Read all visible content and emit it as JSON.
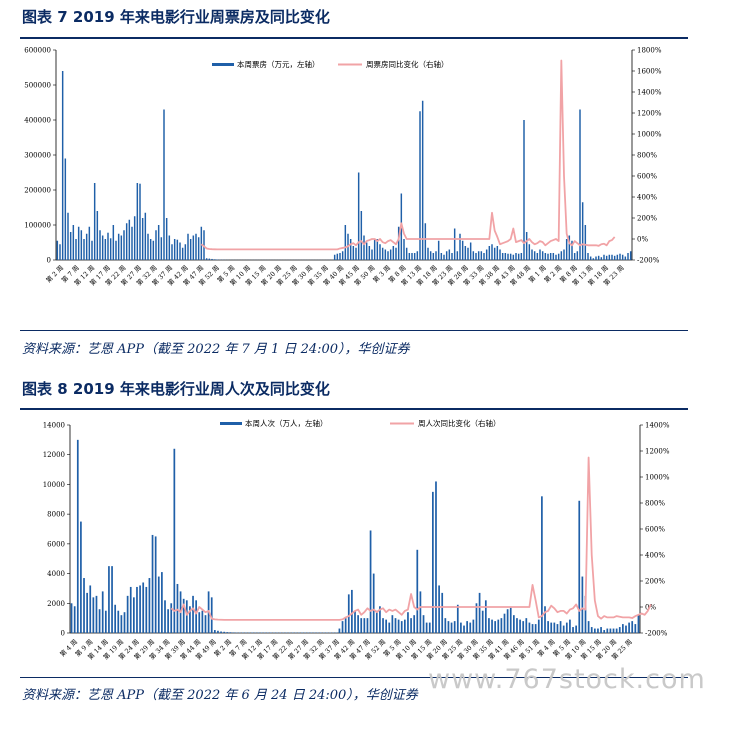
{
  "figures": [
    {
      "title": "图表 7 2019 年来电影行业周票房及同比变化",
      "source": "资料来源：艺恩 APP（截至 2022 年 7 月 1 日 24:00），华创证券"
    },
    {
      "title": "图表 8 2019 年来电影行业周人次及同比变化",
      "source": "资料来源：艺恩 APP（截至 2022 年 6 月 24 日 24:00），华创证券"
    }
  ],
  "watermark": "www.767stock.com",
  "chart_data": [
    {
      "type": "bar",
      "combo": "bar+line",
      "legend_position": "top",
      "series": [
        {
          "name": "本周票房（万元，左轴）",
          "type": "bar",
          "axis": "left",
          "color": "#1f5fa8",
          "values": [
            55000,
            45000,
            540000,
            290000,
            135000,
            80000,
            100000,
            60000,
            95000,
            85000,
            60000,
            75000,
            95000,
            55000,
            220000,
            140000,
            85000,
            70000,
            60000,
            78000,
            62000,
            100000,
            55000,
            75000,
            70000,
            85000,
            105000,
            115000,
            95000,
            125000,
            220000,
            218000,
            120000,
            135000,
            75000,
            60000,
            55000,
            85000,
            100000,
            65000,
            430000,
            120000,
            70000,
            45000,
            60000,
            58000,
            50000,
            35000,
            45000,
            75000,
            60000,
            70000,
            75000,
            65000,
            95000,
            85000,
            5000,
            4000,
            3000,
            2000,
            1500,
            1000,
            800,
            600,
            500,
            400,
            400,
            400,
            300,
            300,
            300,
            300,
            300,
            300,
            300,
            300,
            300,
            300,
            300,
            300,
            300,
            300,
            300,
            300,
            300,
            300,
            300,
            300,
            300,
            300,
            300,
            300,
            300,
            300,
            300,
            300,
            300,
            300,
            300,
            300,
            300,
            300,
            300,
            300,
            15000,
            18000,
            20000,
            25000,
            100000,
            75000,
            60000,
            40000,
            35000,
            250000,
            140000,
            70000,
            50000,
            40000,
            30000,
            60000,
            60000,
            45000,
            35000,
            30000,
            25000,
            30000,
            40000,
            35000,
            95000,
            190000,
            60000,
            35000,
            20000,
            20000,
            20000,
            25000,
            425000,
            455000,
            105000,
            35000,
            25000,
            20000,
            25000,
            55000,
            20000,
            15000,
            25000,
            30000,
            20000,
            90000,
            25000,
            75000,
            55000,
            40000,
            35000,
            50000,
            25000,
            20000,
            25000,
            25000,
            20000,
            30000,
            40000,
            45000,
            35000,
            40000,
            30000,
            20000,
            20000,
            18000,
            18000,
            15000,
            20000,
            18000,
            20000,
            400000,
            80000,
            45000,
            30000,
            25000,
            20000,
            30000,
            25000,
            20000,
            18000,
            20000,
            20000,
            15000,
            18000,
            25000,
            30000,
            60000,
            70000,
            55000,
            20000,
            25000,
            430000,
            165000,
            100000,
            20000,
            10000,
            5000,
            10000,
            12000,
            8000,
            15000,
            12000,
            15000,
            15000,
            12000,
            15000,
            18000,
            15000,
            10000,
            20000,
            25000
          ]
        },
        {
          "name": "周票房同比变化（右轴）",
          "type": "line",
          "axis": "right",
          "color": "#f1a3a6",
          "values": [
            null,
            null,
            null,
            null,
            null,
            null,
            null,
            null,
            null,
            null,
            null,
            null,
            null,
            null,
            null,
            null,
            null,
            null,
            null,
            null,
            null,
            null,
            null,
            null,
            null,
            null,
            null,
            null,
            null,
            null,
            null,
            null,
            null,
            null,
            null,
            null,
            null,
            null,
            null,
            null,
            null,
            null,
            null,
            null,
            null,
            null,
            null,
            null,
            null,
            null,
            null,
            null,
            null,
            null,
            -50,
            -70,
            -90,
            -95,
            -97,
            -98,
            -99,
            -99,
            -99,
            -99,
            -99,
            -99,
            -99,
            -99,
            -99,
            -99,
            -99,
            -99,
            -99,
            -99,
            -99,
            -99,
            -99,
            -99,
            -99,
            -99,
            -99,
            -99,
            -99,
            -99,
            -99,
            -99,
            -99,
            -99,
            -99,
            -99,
            -99,
            -99,
            -99,
            -99,
            -99,
            -99,
            -99,
            -99,
            -99,
            -99,
            -99,
            -99,
            -99,
            -99,
            -99,
            -99,
            -90,
            -85,
            -80,
            -70,
            -50,
            -40,
            -60,
            -30,
            -20,
            -50,
            -20,
            -10,
            0,
            0,
            -20,
            0,
            -30,
            -40,
            -20,
            -10,
            -30,
            -50,
            0,
            150,
            50,
            0,
            0,
            0,
            0,
            0,
            0,
            0,
            0,
            0,
            0,
            0,
            0,
            0,
            0,
            0,
            0,
            0,
            0,
            0,
            0,
            0,
            0,
            0,
            0,
            0,
            0,
            0,
            0,
            0,
            0,
            0,
            0,
            250,
            80,
            20,
            -50,
            -40,
            -30,
            -20,
            0,
            100,
            -30,
            -20,
            -10,
            -40,
            -20,
            0,
            -30,
            -50,
            -40,
            -20,
            -30,
            -60,
            -40,
            -20,
            -10,
            0,
            -20,
            1700,
            600,
            50,
            -40,
            -60,
            -20,
            -40,
            -60,
            -50,
            -55,
            -60,
            -60,
            -60,
            -60,
            -65,
            -50,
            -45,
            -60,
            -20,
            -10,
            20
          ]
        }
      ],
      "left_axis": {
        "min": 0,
        "max": 600000,
        "ticks": [
          "0",
          "100000",
          "200000",
          "300000",
          "400000",
          "500000",
          "600000"
        ]
      },
      "right_axis": {
        "min": -200,
        "max": 1800,
        "ticks": [
          "-200%",
          "0%",
          "200%",
          "400%",
          "600%",
          "800%",
          "1000%",
          "1200%",
          "1400%",
          "1600%",
          "1800%"
        ]
      },
      "x_tick_labels": [
        "第 2 周",
        "第 7 周",
        "第 12 周",
        "第 17 周",
        "第 22 周",
        "第 27 周",
        "第 32 周",
        "第 37 周",
        "第 42 周",
        "第 47 周",
        "第 52 周",
        "第 5 周",
        "第 10 周",
        "第 15 周",
        "第 20 周",
        "第 25 周",
        "第 30 周",
        "第 35 周",
        "第 40 周",
        "第 45 周",
        "第 50 周",
        "第 3 周",
        "第 8 周",
        "第 13 周",
        "第 18 周",
        "第 23 周",
        "第 28 周",
        "第 33 周",
        "第 38 周",
        "第 43 周",
        "第 48 周",
        "第 1 周",
        "第 2 周",
        "第 8 周",
        "第 13 周",
        "第 18 周",
        "第 23 周"
      ]
    },
    {
      "type": "bar",
      "combo": "bar+line",
      "legend_position": "top",
      "series": [
        {
          "name": "本周人次（万人，左轴）",
          "type": "bar",
          "axis": "left",
          "color": "#1f5fa8",
          "values": [
            2000,
            1800,
            13000,
            7500,
            3700,
            2700,
            3200,
            2400,
            2500,
            1600,
            2800,
            1500,
            4500,
            4500,
            1900,
            1500,
            1200,
            1400,
            2500,
            3100,
            2400,
            3100,
            3200,
            3400,
            3100,
            3700,
            6600,
            6500,
            3800,
            4100,
            2200,
            1600,
            2000,
            12400,
            3300,
            2800,
            2300,
            2200,
            1800,
            2500,
            2200,
            1400,
            1500,
            1200,
            2800,
            2400,
            200,
            150,
            100,
            80,
            60,
            50,
            40,
            30,
            30,
            30,
            30,
            30,
            30,
            30,
            30,
            30,
            30,
            30,
            30,
            30,
            30,
            30,
            30,
            30,
            30,
            30,
            30,
            30,
            30,
            30,
            30,
            30,
            30,
            30,
            30,
            30,
            30,
            30,
            30,
            30,
            300,
            800,
            1000,
            2600,
            2900,
            1500,
            1200,
            1000,
            1000,
            1000,
            6900,
            4000,
            1500,
            1800,
            1000,
            900,
            700,
            1200,
            1000,
            900,
            800,
            900,
            1400,
            1000,
            1200,
            5600,
            2800,
            1200,
            700,
            700,
            9500,
            10200,
            3200,
            2700,
            1000,
            800,
            700,
            800,
            1900,
            700,
            500,
            800,
            700,
            900,
            2000,
            2700,
            1500,
            2200,
            1000,
            900,
            800,
            900,
            1000,
            1300,
            1600,
            1700,
            1200,
            1000,
            900,
            800,
            1000,
            700,
            600,
            600,
            900,
            9200,
            1800,
            800,
            700,
            700,
            600,
            800,
            500,
            700,
            900,
            400,
            500,
            8900,
            3800,
            2500,
            800,
            400,
            300,
            300,
            400,
            200,
            300,
            300,
            300,
            300,
            400,
            600,
            500,
            700,
            800,
            600,
            1200
          ]
        },
        {
          "name": "周人次同比变化（右轴）",
          "type": "line",
          "axis": "right",
          "color": "#f1a3a6",
          "values": [
            null,
            null,
            null,
            null,
            null,
            null,
            null,
            null,
            null,
            null,
            null,
            null,
            null,
            null,
            null,
            null,
            null,
            null,
            null,
            null,
            null,
            null,
            null,
            null,
            null,
            null,
            null,
            null,
            null,
            null,
            null,
            null,
            -10,
            -30,
            -20,
            -40,
            20,
            -60,
            -30,
            -10,
            -50,
            0,
            -20,
            -40,
            -30,
            -90,
            -95,
            -97,
            -98,
            -99,
            -99,
            -99,
            -99,
            -99,
            -99,
            -99,
            -99,
            -99,
            -99,
            -99,
            -99,
            -99,
            -99,
            -99,
            -99,
            -99,
            -99,
            -99,
            -99,
            -99,
            -99,
            -99,
            -99,
            -99,
            -99,
            -99,
            -99,
            -99,
            -99,
            -99,
            -99,
            -99,
            -99,
            -99,
            -99,
            -99,
            -99,
            -95,
            -80,
            -70,
            -50,
            -30,
            -20,
            -60,
            -40,
            -10,
            -30,
            -20,
            -40,
            -20,
            -10,
            -40,
            -20,
            -30,
            -20,
            -40,
            -60,
            -30,
            -20,
            100,
            0,
            -20,
            0,
            0,
            0,
            0,
            0,
            0,
            0,
            0,
            0,
            0,
            0,
            0,
            0,
            0,
            0,
            0,
            0,
            0,
            0,
            0,
            0,
            0,
            0,
            0,
            0,
            0,
            0,
            0,
            0,
            0,
            0,
            0,
            0,
            0,
            0,
            0,
            170,
            50,
            -80,
            -70,
            -40,
            -30,
            10,
            -10,
            -40,
            -30,
            -30,
            -50,
            -20,
            -10,
            20,
            -30,
            -10,
            -20,
            1150,
            400,
            50,
            -70,
            -90,
            -70,
            -80,
            -80,
            -80,
            -70,
            -75,
            -80,
            -80,
            -80,
            -85,
            -70,
            -60,
            -50,
            -60,
            -30,
            20
          ]
        }
      ],
      "left_axis": {
        "min": 0,
        "max": 14000,
        "ticks": [
          "0",
          "2000",
          "4000",
          "6000",
          "8000",
          "10000",
          "12000",
          "14000"
        ]
      },
      "right_axis": {
        "min": -200,
        "max": 1400,
        "ticks": [
          "-200%",
          "0%",
          "200%",
          "400%",
          "600%",
          "800%",
          "1000%",
          "1200%",
          "1400%"
        ]
      },
      "x_tick_labels": [
        "第 4 周",
        "第 9 周",
        "第 14 周",
        "第 19 周",
        "第 24 周",
        "第 29 周",
        "第 34 周",
        "第 39 周",
        "第 44 周",
        "第 49 周",
        "第 2 周",
        "第 7 周",
        "第 12 周",
        "第 17 周",
        "第 22 周",
        "第 27 周",
        "第 32 周",
        "第 37 周",
        "第 42 周",
        "第 47 周",
        "第 52 周",
        "第 5 周",
        "第 10 周",
        "第 15 周",
        "第 20 周",
        "第 25 周",
        "第 30 周",
        "第 35 周",
        "第 41 周",
        "第 46 周",
        "第 51 周",
        "第 4 周",
        "第 5 周",
        "第 10 周",
        "第 15 周",
        "第 20 周",
        "第 25 周"
      ]
    }
  ]
}
